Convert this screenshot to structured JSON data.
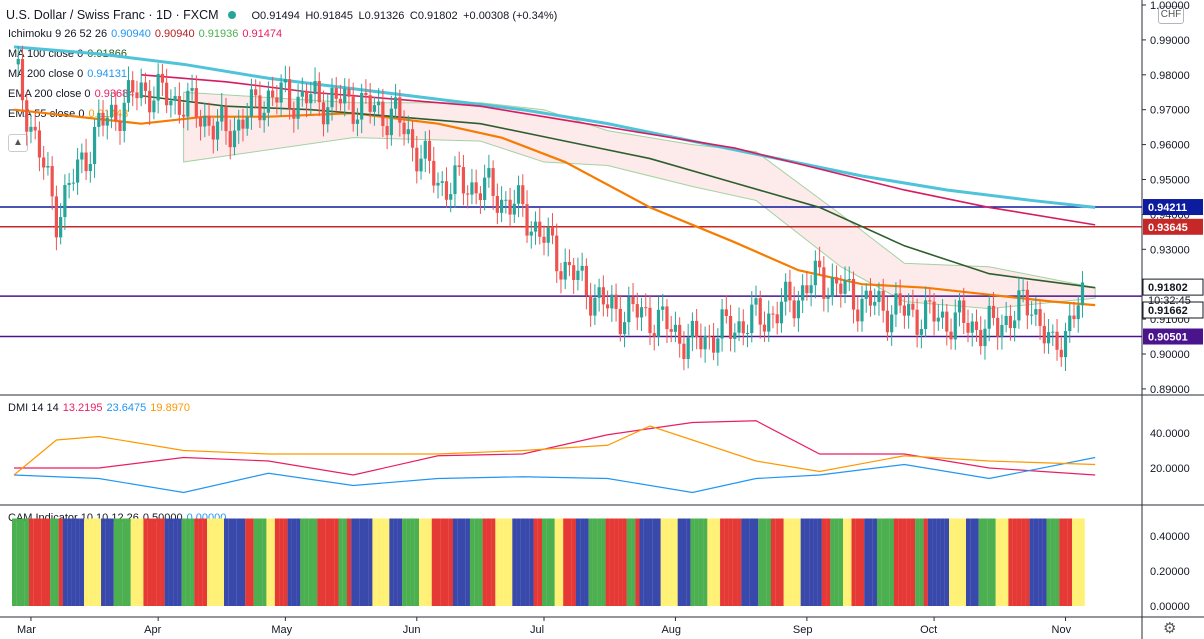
{
  "header": {
    "symbol": "U.S. Dollar / Swiss Franc · 1D · FXCM",
    "open": "O0.91494",
    "high": "H0.91845",
    "low": "L0.91326",
    "close": "C0.91802",
    "change": "+0.00308 (+0.34%)",
    "currency": "CHF"
  },
  "indicators": [
    {
      "name": "Ichimoku 9 26 52 26",
      "values": [
        "0.90940",
        "0.90940",
        "0.91936",
        "0.91474"
      ],
      "colors": [
        "#2196f3",
        "#b71c1c",
        "#4caf50",
        "#e91e63"
      ]
    },
    {
      "name": "MA 100 close 0",
      "values": [
        "0.91866"
      ],
      "colors": [
        "#1b5e20"
      ]
    },
    {
      "name": "MA 200 close 0",
      "values": [
        "0.94131"
      ],
      "colors": [
        "#2196f3"
      ]
    },
    {
      "name": "EMA 200 close 0",
      "values": [
        "0.93684"
      ],
      "colors": [
        "#e91e63"
      ]
    },
    {
      "name": "EMA 55 close 0",
      "values": [
        "0.91443"
      ],
      "colors": [
        "#ff9800"
      ]
    }
  ],
  "dmi": {
    "name": "DMI 14 14",
    "values": [
      "13.2195",
      "23.6475",
      "19.8970"
    ],
    "colors": [
      "#e91e63",
      "#2196f3",
      "#ff9800"
    ]
  },
  "cam": {
    "name": "CAM Indicator 10 10 12 26",
    "values": [
      "0.50000",
      "0.00000"
    ],
    "colors": [
      "#131722",
      "#2196f3"
    ]
  },
  "colors": {
    "up": "#26a69a",
    "down": "#ef5350",
    "ema55": "#f57c00",
    "ma100": "#2e5e2e",
    "ma200": "#4fc3d9",
    "ema200": "#d81b60"
  },
  "chart_data": [
    {
      "type": "line",
      "title": "U.S. Dollar / Swiss Franc · 1D · FXCM",
      "ylim": [
        0.886,
        1.0
      ],
      "y_ticks": [
        "1.00000",
        "0.99000",
        "0.98000",
        "0.97000",
        "0.96000",
        "0.95000",
        "0.94000",
        "0.93000",
        "0.92000",
        "0.91000",
        "0.90000",
        "0.89000"
      ],
      "x_labels": [
        "Mar",
        "Apr",
        "May",
        "Jun",
        "Jul",
        "Aug",
        "Sep",
        "Oct",
        "Nov"
      ],
      "x_label_days": [
        4,
        34,
        64,
        95,
        125,
        156,
        187,
        217,
        248
      ],
      "horizontal_levels": [
        {
          "value": 0.94211,
          "label": "0.94211",
          "color": "#0d1b9e"
        },
        {
          "value": 0.93645,
          "label": "0.93645",
          "color": "#c62828"
        },
        {
          "value": 0.9166,
          "label": "",
          "color": "#4a148c"
        },
        {
          "value": 0.90501,
          "label": "0.90501",
          "color": "#4a148c"
        }
      ],
      "price_tags": [
        {
          "value": 0.91802,
          "label": "0.91802",
          "color": "#131722"
        },
        {
          "value": 0.91662,
          "label": "0.91662",
          "color": "#131722"
        }
      ],
      "countdown": "10:32:45",
      "series": [
        {
          "name": "USD/CHF",
          "kind": "close",
          "x": [
            0,
            10,
            20,
            30,
            40,
            50,
            60,
            70,
            80,
            90,
            100,
            110,
            120,
            130,
            140,
            150,
            160,
            170,
            180,
            190,
            200,
            210,
            220,
            230,
            240,
            245,
            250,
            255
          ],
          "values": [
            0.983,
            0.94,
            0.965,
            0.976,
            0.972,
            0.963,
            0.974,
            0.973,
            0.972,
            0.968,
            0.949,
            0.948,
            0.941,
            0.925,
            0.913,
            0.911,
            0.903,
            0.908,
            0.912,
            0.922,
            0.915,
            0.912,
            0.91,
            0.907,
            0.915,
            0.9,
            0.912,
            0.918
          ]
        },
        {
          "name": "EMA 55",
          "kind": "line",
          "x": [
            0,
            30,
            45,
            60,
            80,
            100,
            115,
            130,
            150,
            170,
            185,
            200,
            215,
            230,
            245,
            255
          ],
          "values": [
            0.97,
            0.966,
            0.968,
            0.968,
            0.969,
            0.966,
            0.962,
            0.955,
            0.942,
            0.932,
            0.924,
            0.92,
            0.919,
            0.917,
            0.915,
            0.914
          ]
        },
        {
          "name": "MA 100",
          "kind": "line",
          "x": [
            30,
            50,
            70,
            90,
            110,
            130,
            150,
            170,
            190,
            210,
            230,
            255
          ],
          "values": [
            0.974,
            0.971,
            0.97,
            0.968,
            0.966,
            0.961,
            0.956,
            0.949,
            0.942,
            0.931,
            0.923,
            0.919
          ]
        },
        {
          "name": "MA 200",
          "kind": "line",
          "x": [
            0,
            20,
            40,
            60,
            80,
            100,
            120,
            140,
            160,
            180,
            200,
            220,
            240,
            255
          ],
          "values": [
            0.988,
            0.986,
            0.983,
            0.979,
            0.976,
            0.973,
            0.97,
            0.966,
            0.961,
            0.956,
            0.951,
            0.947,
            0.944,
            0.942
          ]
        },
        {
          "name": "EMA 200",
          "kind": "line",
          "x": [
            30,
            50,
            70,
            90,
            110,
            130,
            150,
            170,
            190,
            210,
            230,
            255
          ],
          "values": [
            0.98,
            0.978,
            0.975,
            0.973,
            0.971,
            0.967,
            0.963,
            0.959,
            0.953,
            0.947,
            0.942,
            0.937
          ]
        }
      ]
    },
    {
      "type": "line",
      "title": "DMI 14 14",
      "ylim": [
        0,
        60
      ],
      "y_ticks": [
        "40.0000",
        "20.0000"
      ],
      "series": [
        {
          "name": "13.2195",
          "x": [
            0,
            20,
            40,
            60,
            80,
            100,
            120,
            140,
            160,
            175,
            190,
            210,
            230,
            255
          ],
          "values": [
            22,
            18,
            28,
            22,
            18,
            25,
            30,
            37,
            48,
            45,
            30,
            26,
            22,
            14
          ]
        },
        {
          "name": "23.6475",
          "x": [
            0,
            20,
            40,
            60,
            80,
            100,
            120,
            140,
            160,
            175,
            190,
            210,
            230,
            255
          ],
          "values": [
            18,
            12,
            8,
            15,
            12,
            12,
            17,
            12,
            8,
            12,
            18,
            20,
            16,
            24
          ]
        },
        {
          "name": "19.8970",
          "x": [
            0,
            10,
            20,
            40,
            60,
            80,
            100,
            120,
            140,
            150,
            160,
            175,
            190,
            210,
            230,
            255
          ],
          "values": [
            18,
            34,
            40,
            28,
            30,
            26,
            30,
            28,
            35,
            42,
            38,
            22,
            20,
            25,
            26,
            20
          ]
        }
      ]
    },
    {
      "type": "bar",
      "title": "CAM Indicator 10 10 12 26",
      "ylim": [
        0,
        0.5
      ],
      "y_ticks": [
        "0.40000",
        "0.20000",
        "0.00000"
      ],
      "colors": [
        "#4caf50",
        "#e53935",
        "#3949ab",
        "#fff176"
      ],
      "values_note": ""
    }
  ]
}
